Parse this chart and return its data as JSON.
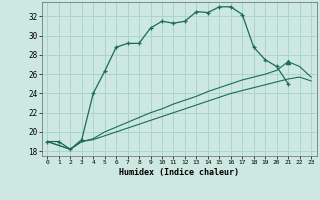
{
  "title": "",
  "xlabel": "Humidex (Indice chaleur)",
  "background_color": "#cce8e0",
  "grid_color": "#aad4cc",
  "line_color": "#1a6b5a",
  "xlim": [
    -0.5,
    23.5
  ],
  "ylim": [
    17.5,
    33.5
  ],
  "xticks": [
    0,
    1,
    2,
    3,
    4,
    5,
    6,
    7,
    8,
    9,
    10,
    11,
    12,
    13,
    14,
    15,
    16,
    17,
    18,
    19,
    20,
    21,
    22,
    23
  ],
  "yticks": [
    18,
    20,
    22,
    24,
    26,
    28,
    30,
    32
  ],
  "curve1_x": [
    0,
    1,
    2,
    3,
    4,
    5,
    6,
    7,
    8,
    9,
    10,
    11,
    12,
    13,
    14,
    15,
    16,
    17,
    18,
    19,
    20,
    21
  ],
  "curve1_y": [
    19.0,
    19.0,
    18.2,
    19.2,
    24.0,
    26.3,
    28.8,
    29.2,
    29.2,
    30.8,
    31.5,
    31.3,
    31.5,
    32.5,
    32.4,
    33.0,
    33.0,
    32.2,
    28.8,
    27.5,
    26.8,
    25.0
  ],
  "curve2_x": [
    0,
    2,
    3,
    4,
    5,
    6,
    7,
    8,
    9,
    10,
    11,
    12,
    13,
    14,
    15,
    16,
    17,
    18,
    19,
    20,
    21,
    22,
    23
  ],
  "curve2_y": [
    19.0,
    18.2,
    19.0,
    19.3,
    20.0,
    20.5,
    21.0,
    21.5,
    22.0,
    22.4,
    22.9,
    23.3,
    23.7,
    24.2,
    24.6,
    25.0,
    25.4,
    25.7,
    26.0,
    26.4,
    27.3,
    26.8,
    25.7
  ],
  "curve3_x": [
    0,
    2,
    3,
    4,
    5,
    6,
    7,
    8,
    9,
    10,
    11,
    12,
    13,
    14,
    15,
    16,
    17,
    18,
    19,
    20,
    21,
    22,
    23
  ],
  "curve3_y": [
    19.0,
    18.2,
    19.0,
    19.2,
    19.6,
    20.0,
    20.4,
    20.8,
    21.2,
    21.6,
    22.0,
    22.4,
    22.8,
    23.2,
    23.6,
    24.0,
    24.3,
    24.6,
    24.9,
    25.2,
    25.5,
    25.7,
    25.3
  ]
}
